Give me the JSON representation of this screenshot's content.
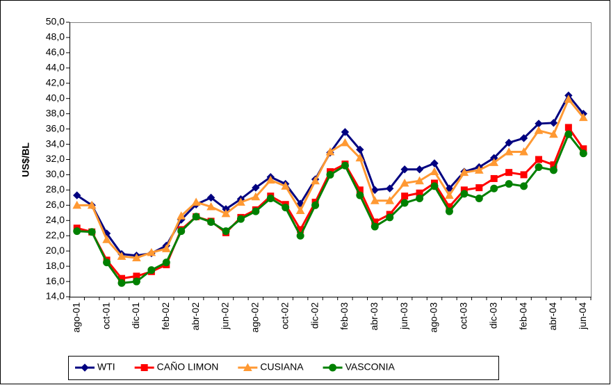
{
  "chart_data": {
    "type": "line",
    "y_label": "US$/BL",
    "categories": [
      "ago-01",
      null,
      "oct-01",
      null,
      "dic-01",
      null,
      "feb-02",
      null,
      "abr-02",
      null,
      "jun-02",
      null,
      "ago-02",
      null,
      "oct-02",
      null,
      "dic-02",
      null,
      "feb-03",
      null,
      "abr-03",
      null,
      "jun-03",
      null,
      "ago-03",
      null,
      "oct-03",
      null,
      "dic-03",
      null,
      "feb-04",
      null,
      "abr-04",
      null,
      "jun-04"
    ],
    "series": [
      {
        "name": "WTI",
        "color": "#000080",
        "marker": "diamond",
        "values": [
          27.3,
          26.0,
          22.3,
          19.6,
          19.4,
          19.7,
          20.7,
          24.1,
          26.1,
          27.0,
          25.5,
          26.8,
          28.3,
          29.7,
          28.8,
          26.2,
          29.4,
          32.9,
          35.6,
          33.3,
          28.0,
          28.2,
          30.7,
          30.7,
          31.5,
          28.2,
          30.4,
          31.0,
          32.2,
          34.2,
          34.8,
          36.7,
          36.8,
          40.4,
          38.0
        ]
      },
      {
        "name": "CAÑO LIMON",
        "color": "#ff0000",
        "marker": "square",
        "values": [
          23.0,
          22.5,
          18.8,
          16.4,
          16.7,
          17.3,
          18.2,
          22.8,
          24.5,
          23.9,
          22.4,
          24.4,
          25.4,
          27.2,
          26.1,
          22.8,
          26.4,
          30.4,
          31.4,
          28.0,
          23.8,
          24.8,
          27.2,
          27.6,
          28.9,
          25.8,
          28.0,
          28.3,
          29.5,
          30.3,
          30.0,
          32.0,
          31.3,
          36.2,
          33.4
        ]
      },
      {
        "name": "CUSIANA",
        "color": "#ff9933",
        "marker": "triangle",
        "values": [
          26.0,
          26.0,
          21.5,
          19.3,
          19.1,
          19.8,
          20.3,
          24.6,
          26.4,
          25.8,
          24.9,
          26.4,
          27.1,
          29.3,
          28.5,
          25.3,
          29.2,
          33.0,
          34.2,
          32.2,
          26.6,
          26.6,
          28.9,
          29.2,
          30.4,
          27.3,
          30.3,
          30.6,
          31.6,
          33.0,
          33.0,
          35.8,
          35.3,
          39.9,
          37.5
        ]
      },
      {
        "name": "VASCONIA",
        "color": "#008000",
        "marker": "circle",
        "values": [
          22.6,
          22.5,
          18.5,
          15.8,
          16.0,
          17.5,
          18.5,
          22.6,
          24.5,
          23.8,
          22.6,
          24.2,
          25.2,
          26.9,
          25.7,
          22.0,
          26.0,
          30.0,
          31.2,
          27.3,
          23.2,
          24.4,
          26.3,
          26.9,
          28.5,
          25.2,
          27.5,
          26.9,
          28.2,
          28.8,
          28.5,
          31.0,
          30.6,
          35.3,
          32.8
        ]
      }
    ],
    "ylim": [
      14,
      50
    ],
    "yticks": [
      {
        "value": 14,
        "label": "14,0"
      },
      {
        "value": 16,
        "label": "16,0"
      },
      {
        "value": 18,
        "label": "18,0"
      },
      {
        "value": 20,
        "label": "20,0"
      },
      {
        "value": 22,
        "label": "22,0"
      },
      {
        "value": 24,
        "label": "24,0"
      },
      {
        "value": 26,
        "label": "26,0"
      },
      {
        "value": 28,
        "label": "28,0"
      },
      {
        "value": 30,
        "label": "30,0"
      },
      {
        "value": 32,
        "label": "32,0"
      },
      {
        "value": 34,
        "label": "34,0"
      },
      {
        "value": 36,
        "label": "36,0"
      },
      {
        "value": 38,
        "label": "38,0"
      },
      {
        "value": 40,
        "label": "40,0"
      },
      {
        "value": 42,
        "label": "42,0"
      },
      {
        "value": 44,
        "label": "44,0"
      },
      {
        "value": 46,
        "label": "46,0"
      },
      {
        "value": 48,
        "label": "48,0"
      },
      {
        "value": 50,
        "label": "50,0"
      }
    ],
    "grid": false,
    "legend": "bottom"
  }
}
